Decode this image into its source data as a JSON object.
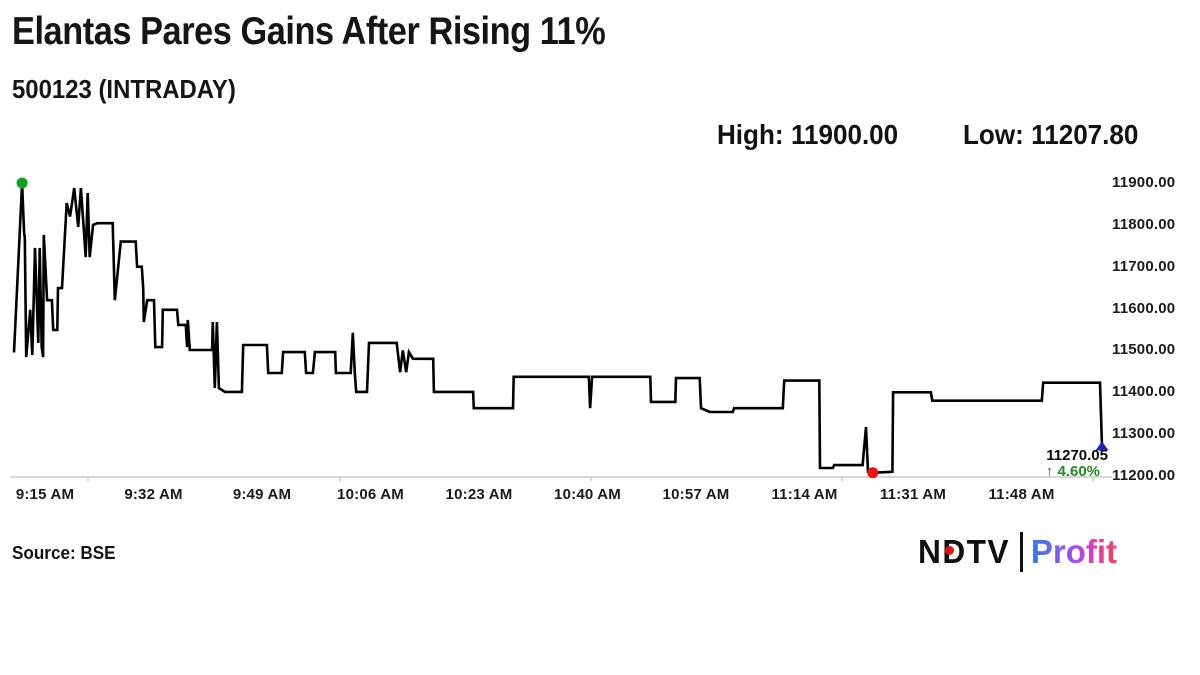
{
  "header": {
    "title": "Elantas Pares Gains After Rising 11%",
    "subtitle": "500123 (INTRADAY)",
    "stats": {
      "high_label": "High:",
      "high_value": "11900.00",
      "low_label": "Low:",
      "low_value": "11207.80"
    }
  },
  "annotation": {
    "last_price": "11270.05",
    "change": "↑ 4.60%",
    "change_color": "#1e8a1e"
  },
  "footer": {
    "source": "Source: BSE",
    "logo": {
      "ndtv": "NDTV",
      "profit": "Profit",
      "dot_color": "#e01515",
      "bar_color": "#101010"
    }
  },
  "chart_data": {
    "type": "line",
    "title": "500123 (INTRADAY)",
    "symbol": "500123",
    "exchange": "BSE",
    "high": 11900.0,
    "low": 11207.8,
    "last_price": 11270.05,
    "change_percent": "+4.60%",
    "x_unit": "minutes after 9:15 AM",
    "x_start_time": "9:15 AM",
    "x_end_time": "~11:56 AM",
    "ylim": [
      11200,
      11900
    ],
    "grid": false,
    "x_labels": [
      "9:15 AM",
      "9:32 AM",
      "9:49 AM",
      "10:06 AM",
      "10:23 AM",
      "10:40 AM",
      "10:57 AM",
      "11:14 AM",
      "11:31 AM",
      "11:48 AM"
    ],
    "y_ticks": [
      "11900.00",
      "11800.00",
      "11700.00",
      "11600.00",
      "11500.00",
      "11400.00",
      "11300.00",
      "11200.00"
    ],
    "colors": {
      "line": "#000000",
      "axis": "#c9c9c9",
      "high_marker": "#0fa31d",
      "low_marker": "#ee1111",
      "last_marker": "#2121bd",
      "change_text": "#1e8a1e"
    },
    "markers": [
      {
        "shape": "circle",
        "role": "high",
        "t": 1.2,
        "price": 11900.0
      },
      {
        "shape": "circle",
        "role": "low",
        "t": 127.0,
        "price": 11207.8
      },
      {
        "shape": "triangle-up",
        "role": "last",
        "t": 160.9,
        "price": 11270.05
      }
    ],
    "points": [
      [
        0.0,
        11495
      ],
      [
        1.2,
        11900
      ],
      [
        1.5,
        11781
      ],
      [
        1.6,
        11770
      ],
      [
        1.8,
        11484
      ],
      [
        2.4,
        11597
      ],
      [
        2.7,
        11489
      ],
      [
        3.1,
        11745
      ],
      [
        3.4,
        11604
      ],
      [
        3.6,
        11518
      ],
      [
        3.8,
        11745
      ],
      [
        4.1,
        11508
      ],
      [
        4.3,
        11484
      ],
      [
        4.4,
        11776
      ],
      [
        4.9,
        11620
      ],
      [
        5.6,
        11620
      ],
      [
        5.8,
        11549
      ],
      [
        6.4,
        11549
      ],
      [
        6.5,
        11649
      ],
      [
        7.1,
        11649
      ],
      [
        7.8,
        11852
      ],
      [
        8.3,
        11820
      ],
      [
        8.9,
        11888
      ],
      [
        9.5,
        11795
      ],
      [
        9.9,
        11888
      ],
      [
        10.6,
        11723
      ],
      [
        10.9,
        11876
      ],
      [
        11.2,
        11723
      ],
      [
        11.7,
        11800
      ],
      [
        12.3,
        11804
      ],
      [
        14.6,
        11804
      ],
      [
        14.9,
        11620
      ],
      [
        15.8,
        11760
      ],
      [
        18.0,
        11760
      ],
      [
        18.2,
        11700
      ],
      [
        18.9,
        11700
      ],
      [
        19.1,
        11649
      ],
      [
        19.2,
        11568
      ],
      [
        19.7,
        11620
      ],
      [
        20.7,
        11620
      ],
      [
        20.9,
        11508
      ],
      [
        21.9,
        11508
      ],
      [
        22.0,
        11597
      ],
      [
        24.1,
        11597
      ],
      [
        24.3,
        11561
      ],
      [
        25.4,
        11561
      ],
      [
        25.6,
        11508
      ],
      [
        25.7,
        11573
      ],
      [
        26.0,
        11501
      ],
      [
        29.3,
        11501
      ],
      [
        29.4,
        11568
      ],
      [
        29.7,
        11410
      ],
      [
        30.0,
        11568
      ],
      [
        30.3,
        11410
      ],
      [
        31.2,
        11401
      ],
      [
        33.7,
        11401
      ],
      [
        33.9,
        11513
      ],
      [
        37.4,
        11513
      ],
      [
        37.6,
        11446
      ],
      [
        39.6,
        11446
      ],
      [
        39.8,
        11496
      ],
      [
        43.0,
        11496
      ],
      [
        43.2,
        11446
      ],
      [
        44.2,
        11446
      ],
      [
        44.5,
        11496
      ],
      [
        47.5,
        11496
      ],
      [
        47.6,
        11446
      ],
      [
        49.8,
        11446
      ],
      [
        50.1,
        11542
      ],
      [
        50.4,
        11446
      ],
      [
        50.6,
        11401
      ],
      [
        52.2,
        11401
      ],
      [
        52.5,
        11518
      ],
      [
        56.6,
        11518
      ],
      [
        57.1,
        11448
      ],
      [
        57.5,
        11500
      ],
      [
        58.0,
        11448
      ],
      [
        58.4,
        11496
      ],
      [
        59.0,
        11480
      ],
      [
        62.0,
        11480
      ],
      [
        62.1,
        11401
      ],
      [
        67.9,
        11401
      ],
      [
        68.0,
        11362
      ],
      [
        73.8,
        11362
      ],
      [
        73.9,
        11437
      ],
      [
        85.0,
        11437
      ],
      [
        85.2,
        11362
      ],
      [
        85.5,
        11437
      ],
      [
        94.1,
        11437
      ],
      [
        94.2,
        11377
      ],
      [
        97.8,
        11377
      ],
      [
        97.9,
        11434
      ],
      [
        101.4,
        11434
      ],
      [
        101.6,
        11362
      ],
      [
        102.9,
        11353
      ],
      [
        106.3,
        11353
      ],
      [
        106.5,
        11362
      ],
      [
        113.7,
        11362
      ],
      [
        113.9,
        11428
      ],
      [
        119.1,
        11428
      ],
      [
        119.2,
        11219
      ],
      [
        121.1,
        11219
      ],
      [
        121.3,
        11226
      ],
      [
        125.5,
        11226
      ],
      [
        126.0,
        11317
      ],
      [
        126.3,
        11210
      ],
      [
        127.0,
        11207.8
      ],
      [
        129.9,
        11210
      ],
      [
        130.0,
        11400
      ],
      [
        135.6,
        11400
      ],
      [
        135.8,
        11380
      ],
      [
        152.0,
        11380
      ],
      [
        152.2,
        11423
      ],
      [
        160.6,
        11423
      ],
      [
        160.9,
        11270.05
      ]
    ]
  }
}
